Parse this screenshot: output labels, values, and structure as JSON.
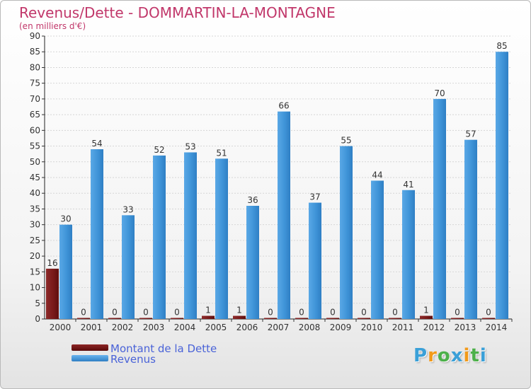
{
  "header": {
    "title": "Revenus/Dette - DOMMARTIN-LA-MONTAGNE",
    "subtitle": "(en milliers d'€)"
  },
  "chart_data": {
    "type": "bar",
    "title": "Revenus/Dette - DOMMARTIN-LA-MONTAGNE",
    "ylabel": "(en milliers d'€)",
    "xlabel": "",
    "ylim": [
      0,
      90
    ],
    "yticks": [
      0,
      5,
      10,
      15,
      20,
      25,
      30,
      35,
      40,
      45,
      50,
      55,
      60,
      65,
      70,
      75,
      80,
      85,
      90
    ],
    "grid": true,
    "legend_position": "bottom-left",
    "categories": [
      "2000",
      "2001",
      "2002",
      "2003",
      "2004",
      "2005",
      "2006",
      "2007",
      "2008",
      "2009",
      "2010",
      "2011",
      "2012",
      "2013",
      "2014"
    ],
    "series": [
      {
        "name": "Montant de la Dette",
        "color": "#7a1a1a",
        "values": [
          16,
          0,
          0,
          0,
          0,
          1,
          1,
          0,
          0,
          0,
          0,
          0,
          1,
          0,
          0
        ]
      },
      {
        "name": "Revenus",
        "color": "#3f94d8",
        "values": [
          30,
          54,
          33,
          52,
          53,
          51,
          36,
          66,
          37,
          55,
          44,
          41,
          70,
          57,
          85
        ]
      }
    ]
  },
  "legend": {
    "items": [
      {
        "label": "Montant de la Dette",
        "color": "#6e0f0f"
      },
      {
        "label": "Revenus",
        "color": "#3f94d8"
      }
    ]
  },
  "logo": {
    "letters": [
      "P",
      "r",
      "o",
      "x",
      "i",
      "t",
      "i"
    ],
    "colors": [
      "#3aa0d8",
      "#f29a1a",
      "#4db04a",
      "#3aa0d8",
      "#f29a1a",
      "#4db04a",
      "#3aa0d8"
    ]
  }
}
